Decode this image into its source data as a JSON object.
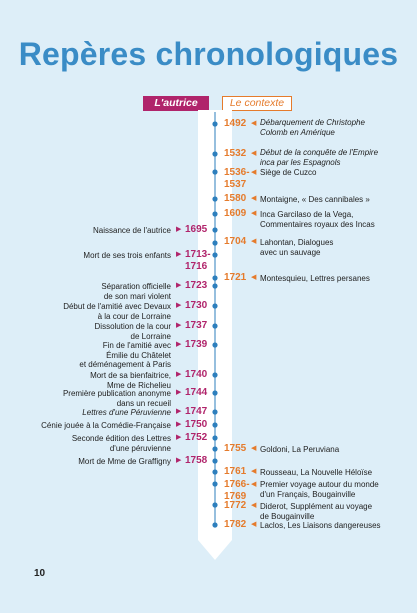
{
  "title": "Repères chronologiques",
  "page_number": "10",
  "labels": {
    "author": "L'autrice",
    "context": "Le contexte"
  },
  "colors": {
    "author": "#b0246b",
    "context": "#e57b2c",
    "title": "#3a8cc6",
    "line": "#2d7fbd"
  },
  "context_events": [
    {
      "year": "1492",
      "text": "Débarquement de Christophe\nColomb en Amérique"
    },
    {
      "year": "1532",
      "text": "Début de la conquête de l'Empire\ninca par les Espagnols"
    },
    {
      "year": "1536-\n1537",
      "text": "Siège de Cuzco"
    },
    {
      "year": "1580",
      "text": "Montaigne, « Des cannibales »"
    },
    {
      "year": "1609",
      "text": "Inca Garcilaso de la Vega,\nCommentaires royaux des Incas"
    },
    {
      "year": "1704",
      "text": "Lahontan, Dialogues\navec un sauvage"
    },
    {
      "year": "1721",
      "text": "Montesquieu, Lettres persanes"
    },
    {
      "year": "1755",
      "text": "Goldoni, La Peruviana"
    },
    {
      "year": "1761",
      "text": "Rousseau, La Nouvelle Héloïse"
    },
    {
      "year": "1766-\n1769",
      "text": "Premier voyage autour du monde\nd'un Français, Bougainville"
    },
    {
      "year": "1772",
      "text": "Diderot, Supplément au voyage\nde Bougainville"
    },
    {
      "year": "1782",
      "text": "Laclos, Les Liaisons dangereuses"
    }
  ],
  "author_events": [
    {
      "year": "1695",
      "text": "Naissance de l'autrice"
    },
    {
      "year": "1713-\n1716",
      "text": "Mort de ses trois enfants"
    },
    {
      "year": "1723",
      "text": "Séparation officielle\nde son mari violent"
    },
    {
      "year": "1730",
      "text": "Début de l'amitié avec Devaux\nà la cour de Lorraine"
    },
    {
      "year": "1737",
      "text": "Dissolution de la cour\nde Lorraine"
    },
    {
      "year": "1739",
      "text": "Fin de l'amitié avec\nÉmilie du Châtelet\net déménagement à Paris"
    },
    {
      "year": "1740",
      "text": "Mort de sa bienfaitrice,\nMme de Richelieu"
    },
    {
      "year": "1744",
      "text": "Première publication anonyme\ndans un recueil"
    },
    {
      "year": "1747",
      "text": "Lettres d'une Péruvienne"
    },
    {
      "year": "1750",
      "text": "Cénie jouée à la Comédie-Française"
    },
    {
      "year": "1752",
      "text": "Seconde édition des Lettres\nd'une péruvienne"
    },
    {
      "year": "1758",
      "text": "Mort de Mme de Graffigny"
    }
  ]
}
